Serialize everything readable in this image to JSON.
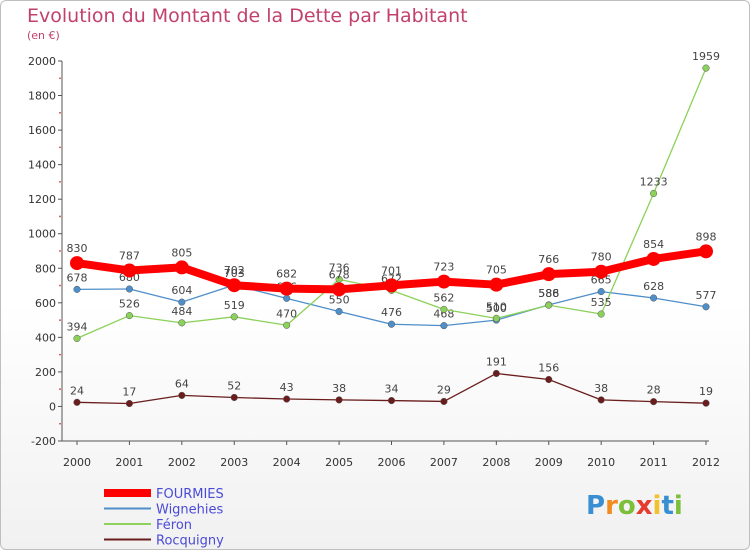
{
  "title": "Evolution du Montant de la Dette par Habitant",
  "subtitle": "(en €)",
  "logo": {
    "letters": [
      "P",
      "r",
      "o",
      "x",
      "i",
      "t",
      "i"
    ],
    "colors": [
      "#3a8fd3",
      "#f28c1e",
      "#7cbf3a",
      "#e63b2e",
      "#f2c12e",
      "#3a8fd3",
      "#7cbf3a"
    ]
  },
  "chart_data": {
    "type": "line",
    "x": [
      "2000",
      "2001",
      "2002",
      "2003",
      "2004",
      "2005",
      "2006",
      "2007",
      "2008",
      "2009",
      "2010",
      "2011",
      "2012"
    ],
    "ylim": [
      -200,
      2000
    ],
    "yticks": [
      "-200",
      "0",
      "200",
      "400",
      "600",
      "800",
      "1000",
      "1200",
      "1400",
      "1600",
      "1800",
      "2000"
    ],
    "grid": false,
    "legend": "bottom-left",
    "series": [
      {
        "name": "FOURMIES",
        "color": "#ff0000",
        "values": [
          830,
          787,
          805,
          702,
          682,
          678,
          701,
          723,
          705,
          766,
          780,
          854,
          898
        ],
        "labels": [
          "830",
          "787",
          "805",
          "702",
          "682",
          "678",
          "701",
          "723",
          "705",
          "766",
          "780",
          "854",
          "898"
        ]
      },
      {
        "name": "Wignehies",
        "color": "#4f8fc9",
        "values": [
          678,
          680,
          604,
          703,
          626,
          550,
          476,
          468,
          500,
          588,
          665,
          628,
          577
        ],
        "labels": [
          "678",
          "680",
          "604",
          "703",
          "626",
          "550",
          "476",
          "468",
          "500",
          "588",
          "665",
          "628",
          "577"
        ]
      },
      {
        "name": "Féron",
        "color": "#8bd15a",
        "values": [
          394,
          526,
          484,
          519,
          470,
          736,
          672,
          562,
          510,
          586,
          535,
          1233,
          1959
        ],
        "labels": [
          "394",
          "526",
          "484",
          "519",
          "470",
          "736",
          "672",
          "562",
          "510",
          "586",
          "535",
          "1233",
          "1959"
        ]
      },
      {
        "name": "Rocquigny",
        "color": "#6b1d1d",
        "values": [
          24,
          17,
          64,
          52,
          43,
          38,
          34,
          29,
          191,
          156,
          38,
          28,
          19
        ],
        "labels": [
          "24",
          "17",
          "64",
          "52",
          "43",
          "38",
          "34",
          "29",
          "191",
          "156",
          "38",
          "28",
          "19"
        ]
      }
    ]
  }
}
